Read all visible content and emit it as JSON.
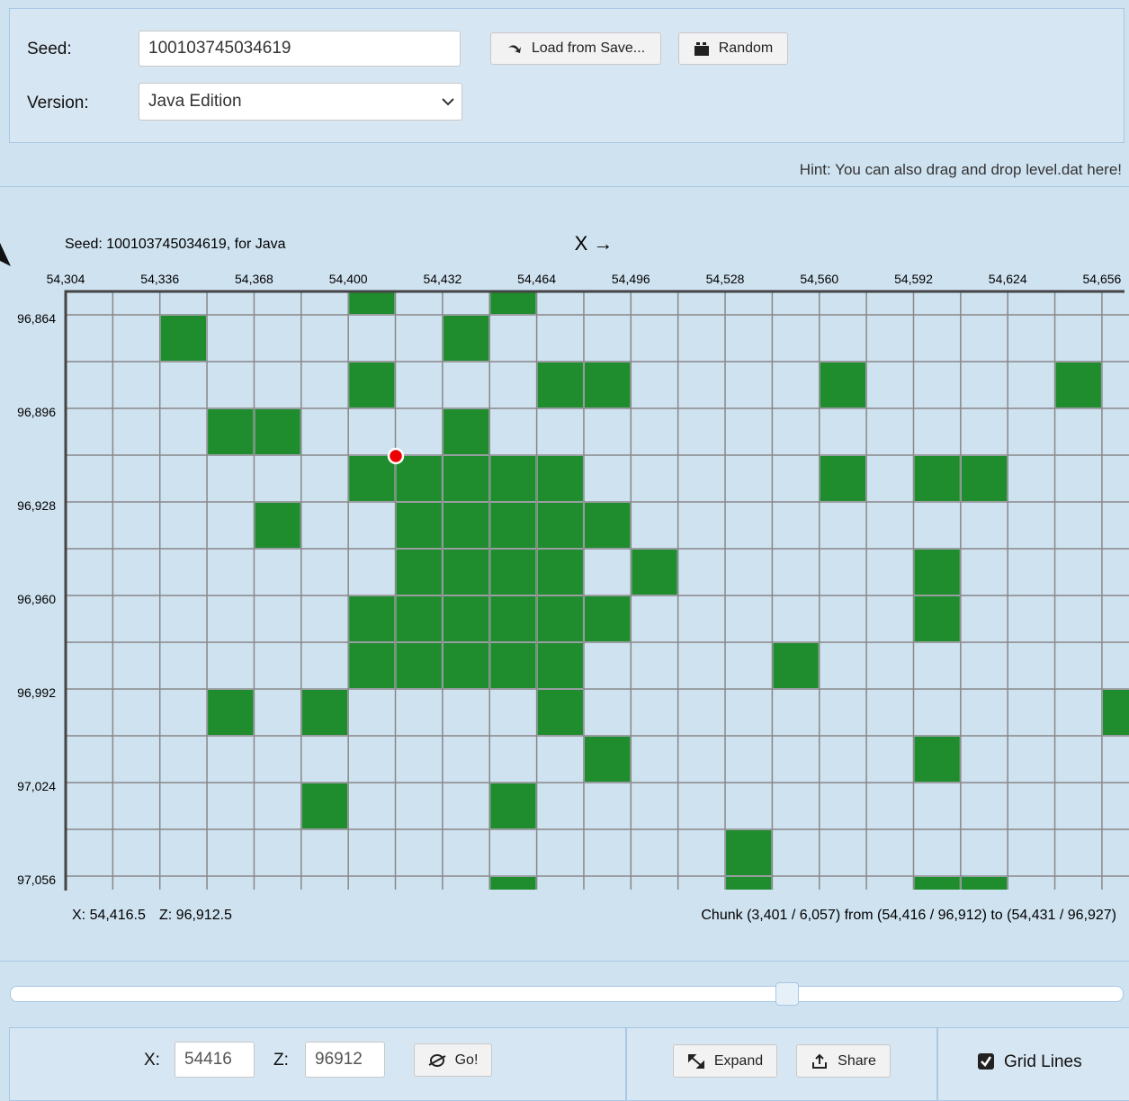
{
  "form": {
    "seed_label": "Seed:",
    "seed_value": "100103745034619",
    "version_label": "Version:",
    "version_value": "Java Edition",
    "load_button": "Load from Save...",
    "random_button": "Random"
  },
  "hint": "Hint: You can also drag and drop level.dat here!",
  "map": {
    "seed_caption": "Seed: 100103745034619, for Java",
    "x_axis_label": "X →",
    "x_labels": [
      "54,304",
      "54,336",
      "54,368",
      "54,400",
      "54,432",
      "54,464",
      "54,496",
      "54,528",
      "54,560",
      "54,592",
      "54,624",
      "54,656"
    ],
    "z_labels": [
      "96,864",
      "96,896",
      "96,928",
      "96,960",
      "96,992",
      "97,024",
      "97,056"
    ],
    "cursor_x": "X: 54,416.5",
    "cursor_z": "Z: 96,912.5",
    "chunk_info": "Chunk (3,401 / 6,057) from (54,416 / 96,912) to (54,431 / 96,927)"
  },
  "controls": {
    "x_label": "X:",
    "x_value": "54416",
    "z_label": "Z:",
    "z_value": "96912",
    "go_button": "Go!",
    "expand_button": "Expand",
    "share_button": "Share",
    "grid_lines_label": "Grid Lines"
  }
}
